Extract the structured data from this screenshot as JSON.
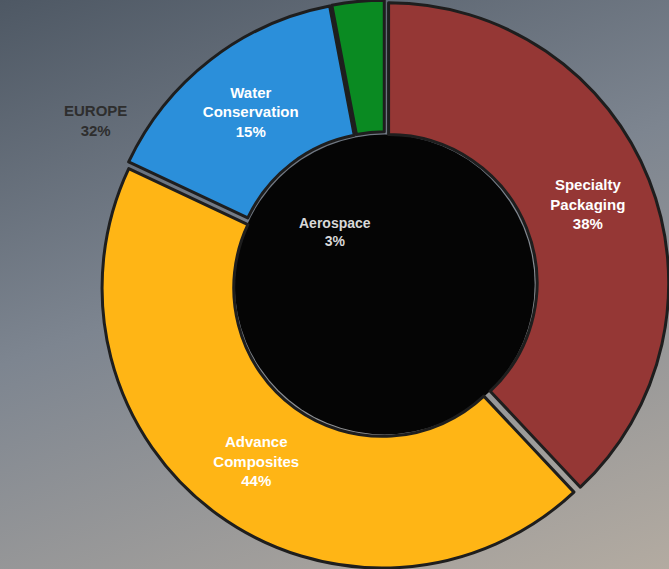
{
  "chart_data": {
    "type": "donut",
    "categories": [
      "Specialty Packaging",
      "Advance Composites",
      "Water Conservation",
      "Aerospace"
    ],
    "values": [
      38,
      44,
      15,
      3
    ],
    "value_labels": [
      "38%",
      "44%",
      "15%",
      "3%"
    ],
    "colors": [
      "#953735",
      "#ffb515",
      "#2b8fda",
      "#0a8a22"
    ],
    "data_labels": true,
    "annotations": [
      "EUROPE 32%"
    ]
  }
}
